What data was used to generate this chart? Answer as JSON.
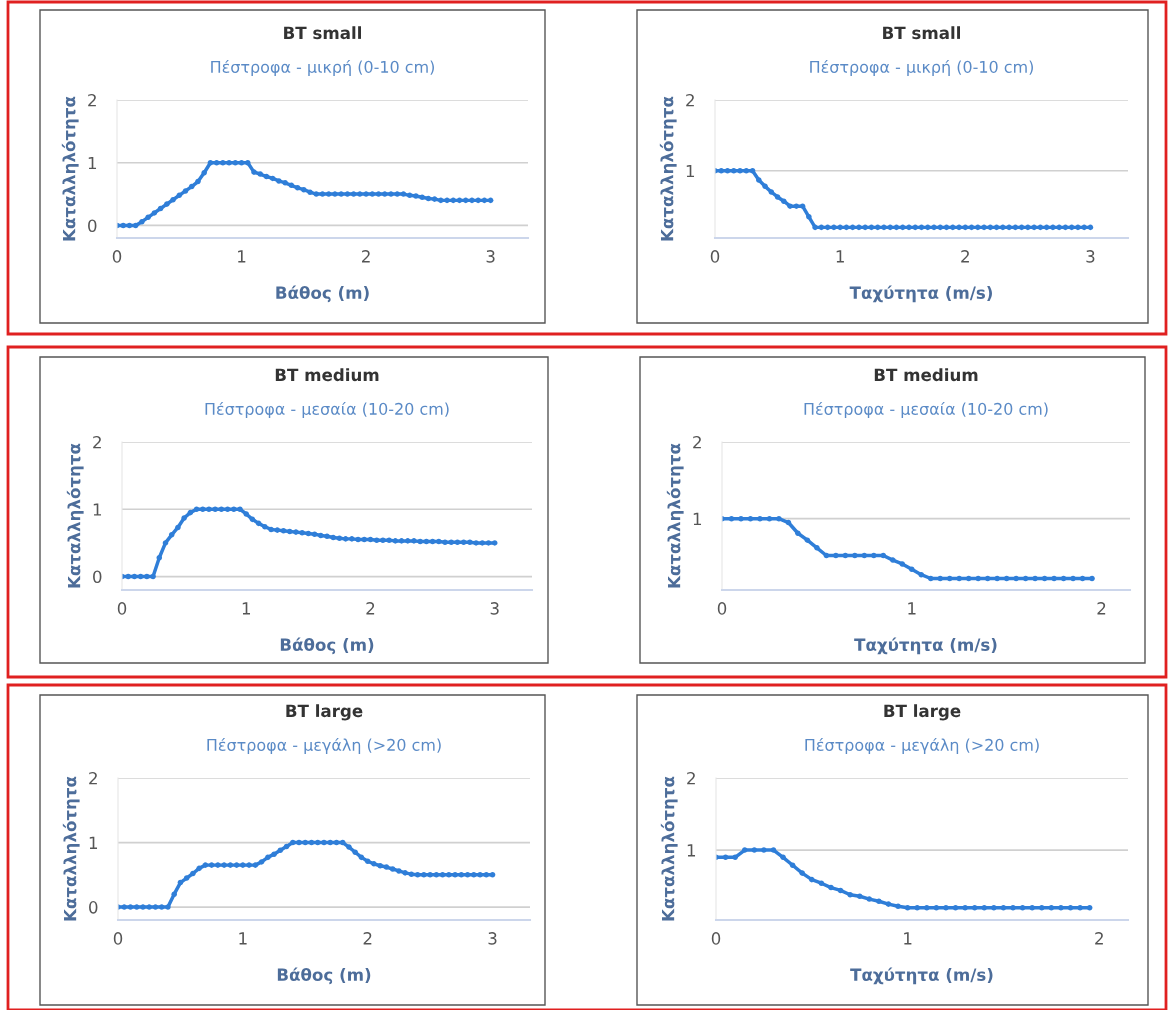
{
  "chart_data": [
    {
      "type": "line",
      "title": "BT small",
      "subtitle": "Πέστροφα - μικρή (0-10 cm)",
      "xlabel": "Βάθος (m)",
      "ylabel": "Καταλληλότητα",
      "xlim": [
        0,
        3.3
      ],
      "xticks": [
        0,
        1,
        2,
        3
      ],
      "ylim": [
        -0.2,
        2
      ],
      "yticks": [
        0,
        1,
        2
      ],
      "grid": "y",
      "marker": "circle",
      "line_style": "solid",
      "series": [
        {
          "color": "#2f7ed8",
          "x": [
            0,
            0.05,
            0.1,
            0.15,
            0.2,
            0.25,
            0.3,
            0.35,
            0.4,
            0.45,
            0.5,
            0.55,
            0.6,
            0.65,
            0.7,
            0.75,
            0.8,
            0.85,
            0.9,
            0.95,
            1.0,
            1.05,
            1.1,
            1.15,
            1.2,
            1.25,
            1.3,
            1.35,
            1.4,
            1.45,
            1.5,
            1.55,
            1.6,
            1.65,
            1.7,
            1.75,
            1.8,
            1.85,
            1.9,
            1.95,
            2.0,
            2.05,
            2.1,
            2.15,
            2.2,
            2.25,
            2.3,
            2.35,
            2.4,
            2.45,
            2.5,
            2.55,
            2.6,
            2.65,
            2.7,
            2.75,
            2.8,
            2.85,
            2.9,
            2.95,
            3.0
          ],
          "values": [
            0,
            0,
            0,
            0,
            0.06,
            0.13,
            0.2,
            0.27,
            0.34,
            0.41,
            0.48,
            0.55,
            0.62,
            0.7,
            0.84,
            1,
            1,
            1,
            1,
            1,
            1,
            1,
            0.85,
            0.82,
            0.78,
            0.75,
            0.71,
            0.68,
            0.64,
            0.6,
            0.57,
            0.53,
            0.5,
            0.5,
            0.5,
            0.5,
            0.5,
            0.5,
            0.5,
            0.5,
            0.5,
            0.5,
            0.5,
            0.5,
            0.5,
            0.5,
            0.5,
            0.48,
            0.47,
            0.45,
            0.43,
            0.42,
            0.4,
            0.4,
            0.4,
            0.4,
            0.4,
            0.4,
            0.4,
            0.4,
            0.4
          ]
        }
      ]
    },
    {
      "type": "line",
      "title": "BT small",
      "subtitle": "Πέστροφα - μικρή (0-10 cm)",
      "xlabel": "Ταχύτητα (m/s)",
      "ylabel": "Καταλληλότητα",
      "xlim": [
        0,
        3.3
      ],
      "xticks": [
        0,
        1,
        2,
        3
      ],
      "ylim": [
        0.05,
        2
      ],
      "yticks": [
        1,
        2
      ],
      "grid": "y",
      "marker": "circle",
      "line_style": "solid",
      "series": [
        {
          "color": "#2f7ed8",
          "x": [
            0,
            0.05,
            0.1,
            0.15,
            0.2,
            0.25,
            0.3,
            0.35,
            0.4,
            0.45,
            0.5,
            0.55,
            0.6,
            0.65,
            0.7,
            0.75,
            0.8,
            0.85,
            0.9,
            0.95,
            1.0,
            1.05,
            1.1,
            1.15,
            1.2,
            1.25,
            1.3,
            1.35,
            1.4,
            1.45,
            1.5,
            1.55,
            1.6,
            1.65,
            1.7,
            1.75,
            1.8,
            1.85,
            1.9,
            1.95,
            2.0,
            2.05,
            2.1,
            2.15,
            2.2,
            2.25,
            2.3,
            2.35,
            2.4,
            2.45,
            2.5,
            2.55,
            2.6,
            2.65,
            2.7,
            2.75,
            2.8,
            2.85,
            2.9,
            2.95,
            3.0
          ],
          "values": [
            1,
            1,
            1,
            1,
            1,
            1,
            1,
            0.87,
            0.78,
            0.7,
            0.63,
            0.57,
            0.5,
            0.5,
            0.5,
            0.35,
            0.2,
            0.2,
            0.2,
            0.2,
            0.2,
            0.2,
            0.2,
            0.2,
            0.2,
            0.2,
            0.2,
            0.2,
            0.2,
            0.2,
            0.2,
            0.2,
            0.2,
            0.2,
            0.2,
            0.2,
            0.2,
            0.2,
            0.2,
            0.2,
            0.2,
            0.2,
            0.2,
            0.2,
            0.2,
            0.2,
            0.2,
            0.2,
            0.2,
            0.2,
            0.2,
            0.2,
            0.2,
            0.2,
            0.2,
            0.2,
            0.2,
            0.2,
            0.2,
            0.2,
            0.2
          ]
        }
      ]
    },
    {
      "type": "line",
      "title": "BT medium",
      "subtitle": "Πέστροφα - μεσαία (10-20 cm)",
      "xlabel": "Βάθος (m)",
      "ylabel": "Καταλληλότητα",
      "xlim": [
        0,
        3.3
      ],
      "xticks": [
        0,
        1,
        2,
        3
      ],
      "ylim": [
        -0.2,
        2
      ],
      "yticks": [
        0,
        1,
        2
      ],
      "grid": "y",
      "marker": "circle",
      "line_style": "solid",
      "series": [
        {
          "color": "#2f7ed8",
          "x": [
            0,
            0.05,
            0.1,
            0.15,
            0.2,
            0.25,
            0.3,
            0.35,
            0.4,
            0.45,
            0.5,
            0.55,
            0.6,
            0.65,
            0.7,
            0.75,
            0.8,
            0.85,
            0.9,
            0.95,
            1.0,
            1.05,
            1.1,
            1.15,
            1.2,
            1.25,
            1.3,
            1.35,
            1.4,
            1.45,
            1.5,
            1.55,
            1.6,
            1.65,
            1.7,
            1.75,
            1.8,
            1.85,
            1.9,
            1.95,
            2.0,
            2.05,
            2.1,
            2.15,
            2.2,
            2.25,
            2.3,
            2.35,
            2.4,
            2.45,
            2.5,
            2.55,
            2.6,
            2.65,
            2.7,
            2.75,
            2.8,
            2.85,
            2.9,
            2.95,
            3.0
          ],
          "values": [
            0,
            0,
            0,
            0,
            0,
            0,
            0.28,
            0.5,
            0.62,
            0.73,
            0.87,
            0.95,
            1,
            1,
            1,
            1,
            1,
            1,
            1,
            1,
            0.93,
            0.85,
            0.79,
            0.74,
            0.7,
            0.69,
            0.68,
            0.67,
            0.66,
            0.65,
            0.64,
            0.63,
            0.61,
            0.6,
            0.58,
            0.57,
            0.56,
            0.56,
            0.55,
            0.55,
            0.55,
            0.54,
            0.54,
            0.54,
            0.53,
            0.53,
            0.53,
            0.53,
            0.52,
            0.52,
            0.52,
            0.52,
            0.51,
            0.51,
            0.51,
            0.51,
            0.51,
            0.5,
            0.5,
            0.5,
            0.5
          ]
        }
      ]
    },
    {
      "type": "line",
      "title": "BT medium",
      "subtitle": "Πέστροφα - μεσαία (10-20 cm)",
      "xlabel": "Ταχύτητα (m/s)",
      "ylabel": "Καταλληλότητα",
      "xlim": [
        0,
        2.15
      ],
      "xticks": [
        0,
        1,
        2
      ],
      "ylim": [
        0.07,
        2
      ],
      "yticks": [
        1,
        2
      ],
      "grid": "y",
      "marker": "circle",
      "line_style": "solid",
      "series": [
        {
          "color": "#2f7ed8",
          "x": [
            0,
            0.05,
            0.1,
            0.15,
            0.2,
            0.25,
            0.3,
            0.35,
            0.4,
            0.45,
            0.5,
            0.55,
            0.6,
            0.65,
            0.7,
            0.75,
            0.8,
            0.85,
            0.9,
            0.95,
            1.0,
            1.05,
            1.1,
            1.15,
            1.2,
            1.25,
            1.3,
            1.35,
            1.4,
            1.45,
            1.5,
            1.55,
            1.6,
            1.65,
            1.7,
            1.75,
            1.8,
            1.85,
            1.9,
            1.95
          ],
          "values": [
            1,
            1,
            1,
            1,
            1,
            1,
            1,
            0.95,
            0.81,
            0.72,
            0.62,
            0.52,
            0.52,
            0.52,
            0.52,
            0.52,
            0.52,
            0.52,
            0.46,
            0.41,
            0.34,
            0.27,
            0.22,
            0.22,
            0.22,
            0.22,
            0.22,
            0.22,
            0.22,
            0.22,
            0.22,
            0.22,
            0.22,
            0.22,
            0.22,
            0.22,
            0.22,
            0.22,
            0.22,
            0.22
          ]
        }
      ]
    },
    {
      "type": "line",
      "title": "BT large",
      "subtitle": "Πέστροφα - μεγάλη (>20 cm)",
      "xlabel": "Βάθος (m)",
      "ylabel": "Καταλληλότητα",
      "xlim": [
        0,
        3.3
      ],
      "xticks": [
        0,
        1,
        2,
        3
      ],
      "ylim": [
        -0.2,
        2
      ],
      "yticks": [
        0,
        1,
        2
      ],
      "grid": "y",
      "marker": "circle",
      "line_style": "solid",
      "series": [
        {
          "color": "#2f7ed8",
          "x": [
            0,
            0.05,
            0.1,
            0.15,
            0.2,
            0.25,
            0.3,
            0.35,
            0.4,
            0.45,
            0.5,
            0.55,
            0.6,
            0.65,
            0.7,
            0.75,
            0.8,
            0.85,
            0.9,
            0.95,
            1.0,
            1.05,
            1.1,
            1.15,
            1.2,
            1.25,
            1.3,
            1.35,
            1.4,
            1.45,
            1.5,
            1.55,
            1.6,
            1.65,
            1.7,
            1.75,
            1.8,
            1.85,
            1.9,
            1.95,
            2.0,
            2.05,
            2.1,
            2.15,
            2.2,
            2.25,
            2.3,
            2.35,
            2.4,
            2.45,
            2.5,
            2.55,
            2.6,
            2.65,
            2.7,
            2.75,
            2.8,
            2.85,
            2.9,
            2.95,
            3.0
          ],
          "values": [
            0,
            0,
            0,
            0,
            0,
            0,
            0,
            0,
            0,
            0.2,
            0.38,
            0.45,
            0.52,
            0.6,
            0.65,
            0.65,
            0.65,
            0.65,
            0.65,
            0.65,
            0.65,
            0.65,
            0.65,
            0.7,
            0.77,
            0.82,
            0.88,
            0.94,
            1,
            1,
            1,
            1,
            1,
            1,
            1,
            1,
            1,
            0.93,
            0.85,
            0.77,
            0.71,
            0.67,
            0.64,
            0.62,
            0.59,
            0.56,
            0.53,
            0.51,
            0.5,
            0.5,
            0.5,
            0.5,
            0.5,
            0.5,
            0.5,
            0.5,
            0.5,
            0.5,
            0.5,
            0.5,
            0.5
          ]
        }
      ]
    },
    {
      "type": "line",
      "title": "BT large",
      "subtitle": "Πέστροφα - μεγάλη (>20 cm)",
      "xlabel": "Ταχύτητα (m/s)",
      "ylabel": "Καταλληλότητα",
      "xlim": [
        0,
        2.15
      ],
      "xticks": [
        0,
        1,
        2
      ],
      "ylim": [
        0.03,
        2
      ],
      "yticks": [
        1,
        2
      ],
      "grid": "y",
      "marker": "circle",
      "line_style": "solid",
      "series": [
        {
          "color": "#2f7ed8",
          "x": [
            0,
            0.05,
            0.1,
            0.15,
            0.2,
            0.25,
            0.3,
            0.35,
            0.4,
            0.45,
            0.5,
            0.55,
            0.6,
            0.65,
            0.7,
            0.75,
            0.8,
            0.85,
            0.9,
            0.95,
            1.0,
            1.05,
            1.1,
            1.15,
            1.2,
            1.25,
            1.3,
            1.35,
            1.4,
            1.45,
            1.5,
            1.55,
            1.6,
            1.65,
            1.7,
            1.75,
            1.8,
            1.85,
            1.9,
            1.95
          ],
          "values": [
            0.9,
            0.9,
            0.9,
            1,
            1,
            1,
            1,
            0.9,
            0.79,
            0.68,
            0.59,
            0.54,
            0.48,
            0.44,
            0.38,
            0.36,
            0.32,
            0.29,
            0.25,
            0.22,
            0.2,
            0.2,
            0.2,
            0.2,
            0.2,
            0.2,
            0.2,
            0.2,
            0.2,
            0.2,
            0.2,
            0.2,
            0.2,
            0.2,
            0.2,
            0.2,
            0.2,
            0.2,
            0.2,
            0.2
          ]
        }
      ]
    }
  ]
}
